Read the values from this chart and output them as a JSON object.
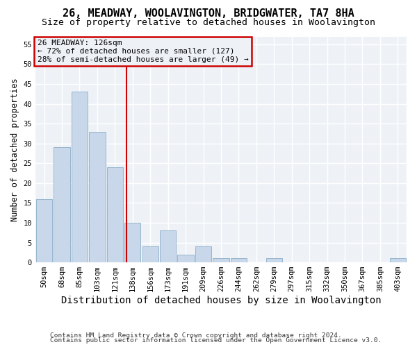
{
  "title": "26, MEADWAY, WOOLAVINGTON, BRIDGWATER, TA7 8HA",
  "subtitle": "Size of property relative to detached houses in Woolavington",
  "xlabel": "Distribution of detached houses by size in Woolavington",
  "ylabel": "Number of detached properties",
  "footer_line1": "Contains HM Land Registry data © Crown copyright and database right 2024.",
  "footer_line2": "Contains public sector information licensed under the Open Government Licence v3.0.",
  "bin_labels": [
    "50sqm",
    "68sqm",
    "85sqm",
    "103sqm",
    "121sqm",
    "138sqm",
    "156sqm",
    "173sqm",
    "191sqm",
    "209sqm",
    "226sqm",
    "244sqm",
    "262sqm",
    "279sqm",
    "297sqm",
    "315sqm",
    "332sqm",
    "350sqm",
    "367sqm",
    "385sqm",
    "403sqm"
  ],
  "bar_heights": [
    16,
    29,
    43,
    33,
    24,
    10,
    4,
    8,
    2,
    4,
    1,
    1,
    0,
    1,
    0,
    0,
    0,
    0,
    0,
    0,
    1
  ],
  "bar_color": "#c8d8ea",
  "bar_edge_color": "#8baec8",
  "vline_x_index": 4.65,
  "vline_color": "#cc0000",
  "annotation_text": "26 MEADWAY: 126sqm\n← 72% of detached houses are smaller (127)\n28% of semi-detached houses are larger (49) →",
  "annotation_box_color": "#cc0000",
  "ylim": [
    0,
    57
  ],
  "yticks": [
    0,
    5,
    10,
    15,
    20,
    25,
    30,
    35,
    40,
    45,
    50,
    55
  ],
  "background_color": "#ffffff",
  "plot_bg_color": "#eef2f7",
  "grid_color": "#ffffff",
  "title_fontsize": 11,
  "subtitle_fontsize": 9.5,
  "xlabel_fontsize": 10,
  "ylabel_fontsize": 8.5,
  "tick_fontsize": 7.5,
  "footer_fontsize": 6.8,
  "annotation_fontsize": 8.0
}
